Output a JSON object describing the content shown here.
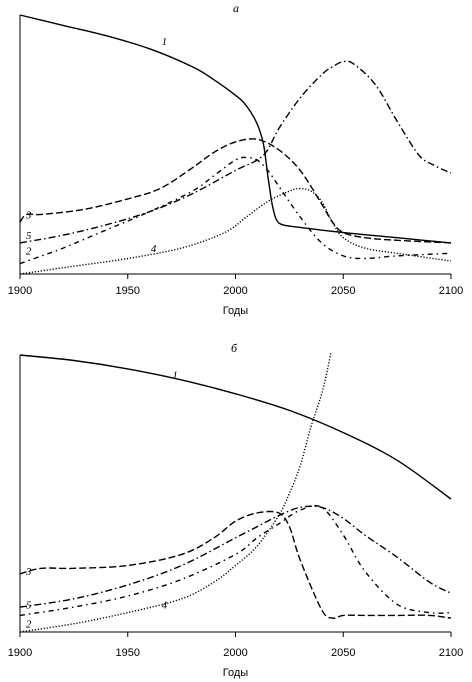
{
  "chart_data": [
    {
      "type": "line",
      "panel_label": "а",
      "xlabel": "Годы",
      "ylabel": "",
      "xlim": [
        1900,
        2100
      ],
      "ylim": [
        0,
        1
      ],
      "x_ticks": [
        "1900",
        "1950",
        "2000",
        "2050",
        "2100"
      ],
      "grid": false,
      "y_axis_scale_shown": false,
      "series": [
        {
          "label": "1",
          "style": "solid",
          "label_at": [
            1967,
            0.9
          ],
          "x": [
            1900,
            1920,
            1940,
            1960,
            1980,
            1990,
            2000,
            2005,
            2010,
            2013,
            2015,
            2017,
            2019,
            2022,
            2030,
            2050,
            2075,
            2100
          ],
          "y": [
            1.0,
            0.96,
            0.92,
            0.87,
            0.8,
            0.75,
            0.69,
            0.65,
            0.58,
            0.5,
            0.38,
            0.27,
            0.21,
            0.19,
            0.18,
            0.16,
            0.14,
            0.12
          ]
        },
        {
          "label": "2",
          "style": "dashdot-sparse",
          "label_at": [
            1904,
            0.09
          ],
          "x": [
            1900,
            1910,
            1920,
            1940,
            1960,
            1980,
            1990,
            2000,
            2005,
            2010,
            2015,
            2020,
            2030,
            2040,
            2050,
            2060,
            2075,
            2100
          ],
          "y": [
            0.04,
            0.07,
            0.1,
            0.17,
            0.24,
            0.32,
            0.38,
            0.44,
            0.45,
            0.44,
            0.4,
            0.34,
            0.22,
            0.12,
            0.07,
            0.06,
            0.07,
            0.08
          ]
        },
        {
          "label": "3",
          "style": "dashed",
          "label_at": [
            1904,
            0.23
          ],
          "x": [
            1900,
            1903,
            1910,
            1930,
            1950,
            1965,
            1980,
            1990,
            2000,
            2010,
            2020,
            2030,
            2040,
            2045,
            2050,
            2060,
            2075,
            2100
          ],
          "y": [
            0.2,
            0.23,
            0.23,
            0.25,
            0.29,
            0.33,
            0.41,
            0.47,
            0.51,
            0.52,
            0.48,
            0.4,
            0.27,
            0.2,
            0.16,
            0.14,
            0.13,
            0.12
          ]
        },
        {
          "label": "4",
          "style": "dotted-fine",
          "label_at": [
            1962,
            0.1
          ],
          "x": [
            1900,
            1925,
            1950,
            1975,
            1995,
            2005,
            2015,
            2025,
            2030,
            2035,
            2040,
            2045,
            2050,
            2060,
            2075,
            2100
          ],
          "y": [
            0.0,
            0.03,
            0.06,
            0.1,
            0.16,
            0.22,
            0.28,
            0.32,
            0.33,
            0.32,
            0.28,
            0.2,
            0.14,
            0.1,
            0.08,
            0.05
          ]
        },
        {
          "label": "5",
          "style": "dashdot",
          "label_at": [
            1904,
            0.15
          ],
          "x": [
            1900,
            1920,
            1940,
            1960,
            1980,
            2000,
            2010,
            2015,
            2020,
            2030,
            2040,
            2045,
            2050,
            2055,
            2065,
            2075,
            2085,
            2092,
            2100
          ],
          "y": [
            0.12,
            0.15,
            0.19,
            0.24,
            0.31,
            0.4,
            0.44,
            0.48,
            0.56,
            0.68,
            0.77,
            0.8,
            0.82,
            0.81,
            0.73,
            0.59,
            0.46,
            0.42,
            0.39
          ]
        }
      ]
    },
    {
      "type": "line",
      "panel_label": "б",
      "xlabel": "Годы",
      "ylabel": "",
      "xlim": [
        1900,
        2100
      ],
      "ylim": [
        0,
        1
      ],
      "x_ticks": [
        "1900",
        "1950",
        "2000",
        "2050",
        "2100"
      ],
      "grid": false,
      "y_axis_scale_shown": false,
      "series": [
        {
          "label": "1",
          "style": "solid",
          "label_at": [
            1972,
            0.93
          ],
          "x": [
            1900,
            1925,
            1950,
            1975,
            2000,
            2025,
            2050,
            2075,
            2100
          ],
          "y": [
            1.0,
            0.98,
            0.95,
            0.91,
            0.86,
            0.8,
            0.72,
            0.62,
            0.48
          ]
        },
        {
          "label": "2",
          "style": "dashdot-sparse",
          "label_at": [
            1904,
            0.03
          ],
          "x": [
            1900,
            1925,
            1950,
            1975,
            2000,
            2010,
            2020,
            2030,
            2040,
            2050,
            2060,
            2075,
            2090,
            2100
          ],
          "y": [
            0.06,
            0.09,
            0.13,
            0.19,
            0.28,
            0.34,
            0.39,
            0.44,
            0.45,
            0.35,
            0.22,
            0.1,
            0.07,
            0.07
          ]
        },
        {
          "label": "3",
          "style": "dashed",
          "label_at": [
            1904,
            0.22
          ],
          "x": [
            1900,
            1910,
            1925,
            1950,
            1975,
            1990,
            2000,
            2010,
            2020,
            2025,
            2030,
            2040,
            2045,
            2050,
            2060,
            2075,
            2090,
            2100
          ],
          "y": [
            0.21,
            0.23,
            0.23,
            0.24,
            0.28,
            0.34,
            0.4,
            0.43,
            0.43,
            0.38,
            0.26,
            0.08,
            0.05,
            0.06,
            0.06,
            0.06,
            0.06,
            0.05
          ]
        },
        {
          "label": "4",
          "style": "dotted-fine",
          "label_at": [
            1967,
            0.1
          ],
          "x": [
            1900,
            1925,
            1950,
            1975,
            1990,
            2000,
            2010,
            2020,
            2025,
            2030,
            2035,
            2040,
            2043,
            2045
          ],
          "y": [
            0.0,
            0.03,
            0.07,
            0.12,
            0.18,
            0.24,
            0.31,
            0.42,
            0.5,
            0.6,
            0.74,
            0.86,
            0.96,
            1.04
          ]
        },
        {
          "label": "5",
          "style": "dashdot",
          "label_at": [
            1904,
            0.1
          ],
          "x": [
            1900,
            1925,
            1950,
            1975,
            2000,
            2010,
            2020,
            2030,
            2040,
            2050,
            2060,
            2075,
            2090,
            2100
          ],
          "y": [
            0.09,
            0.12,
            0.17,
            0.24,
            0.34,
            0.38,
            0.42,
            0.45,
            0.45,
            0.41,
            0.35,
            0.27,
            0.18,
            0.14
          ]
        }
      ]
    }
  ]
}
